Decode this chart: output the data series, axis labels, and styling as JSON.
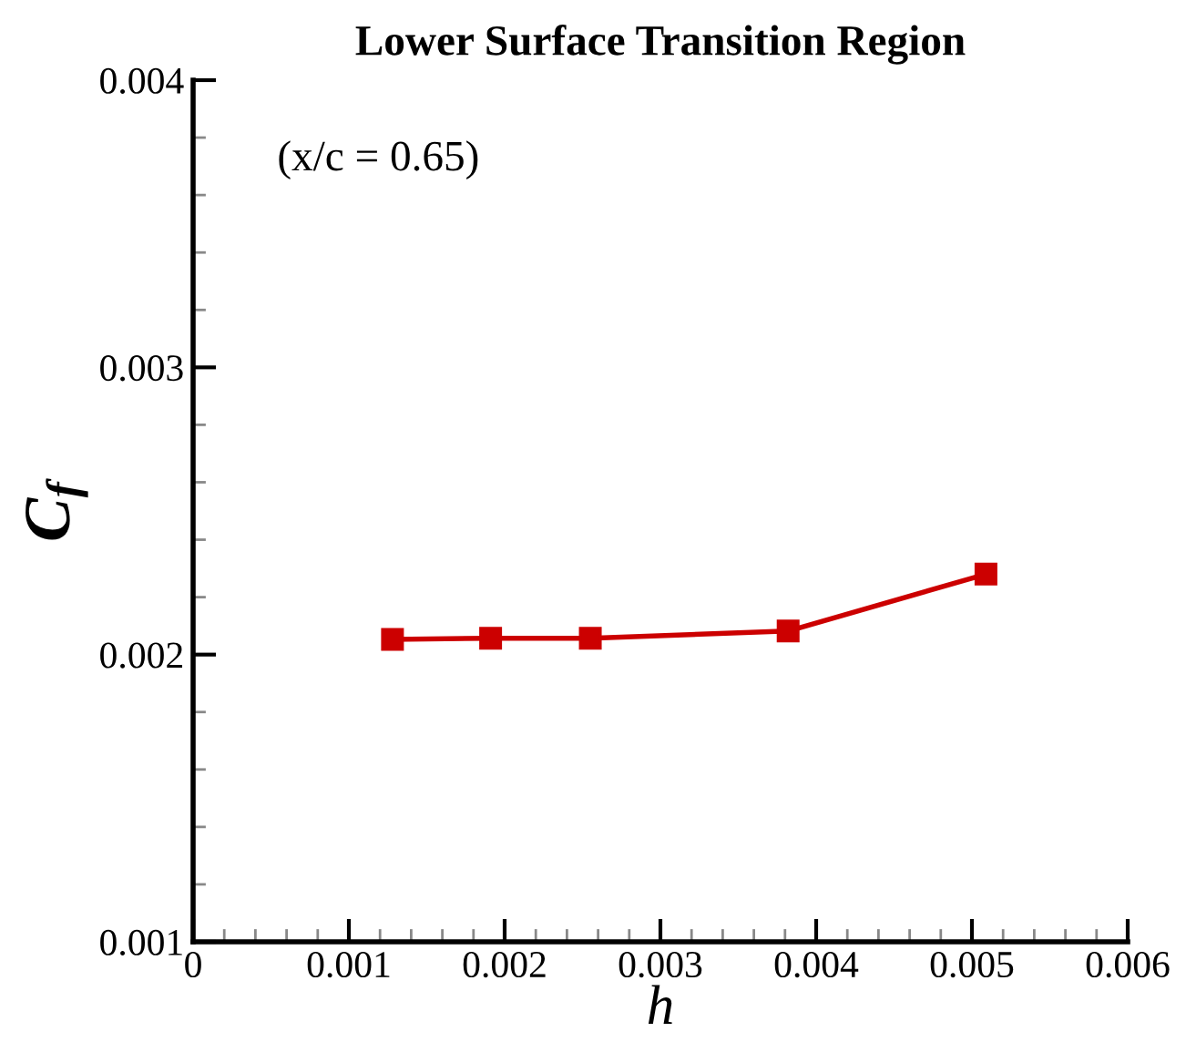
{
  "chart_data": {
    "type": "line",
    "title": "Lower Surface Transition Region",
    "xlabel": "h",
    "ylabel": "C$_{f}$",
    "annotations": [
      "(x/c = 0.65)"
    ],
    "x": [
      0.00128,
      0.00191,
      0.00255,
      0.00382,
      0.00509
    ],
    "series": [
      {
        "color": "#cc0000",
        "values": [
          0.002053,
          0.002057,
          0.002057,
          0.002082,
          0.00228
        ]
      }
    ],
    "marker": "square",
    "line_style": "solid",
    "grid": false,
    "legend": false,
    "xlim": [
      0,
      0.006
    ],
    "xticks": [
      0,
      0.001,
      0.002,
      0.003,
      0.004,
      0.005,
      0.006
    ],
    "ylim": [
      0.001,
      0.004
    ],
    "yticks": [
      0.001,
      0.002,
      0.003,
      0.004
    ]
  }
}
